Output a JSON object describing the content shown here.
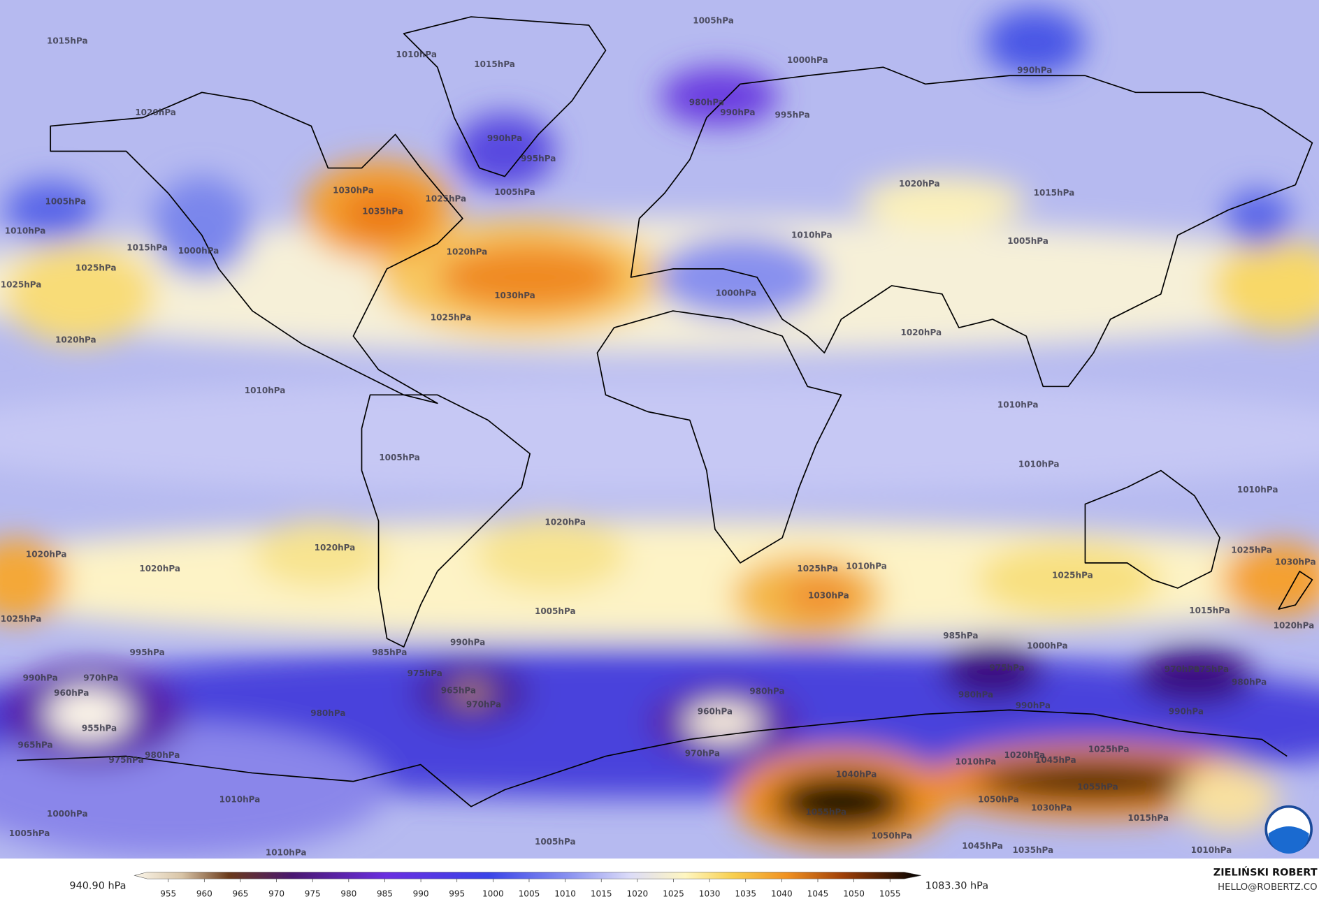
{
  "colorbar": {
    "min_label": "940.90 hPa",
    "max_label": "1083.30 hPa",
    "ticks": [
      955,
      960,
      965,
      970,
      975,
      980,
      985,
      990,
      995,
      1000,
      1005,
      1010,
      1015,
      1020,
      1025,
      1030,
      1035,
      1040,
      1045,
      1050,
      1055
    ]
  },
  "credit": {
    "name": "ZIELIŃSKI ROBERT",
    "email": "HELLO@ROBERTZ.CO"
  },
  "contour_labels": [
    "1015hPa",
    "1005hPa",
    "1000hPa",
    "990hPa",
    "1020hPa",
    "980hPa",
    "990hPa",
    "995hPa",
    "1010hPa",
    "1015hPa",
    "990hPa",
    "995hPa",
    "1030hPa",
    "1035hPa",
    "1005hPa",
    "1025hPa",
    "1020hPa",
    "1030hPa",
    "1025hPa",
    "1005hPa",
    "1010hPa",
    "1015hPa",
    "1000hPa",
    "1025hPa",
    "1025hPa",
    "1020hPa",
    "1010hPa",
    "1020hPa",
    "1015hPa",
    "1010hPa",
    "1005hPa",
    "1000hPa",
    "1020hPa",
    "1010hPa",
    "1010hPa",
    "1010hPa",
    "1005hPa",
    "1020hPa",
    "1020hPa",
    "1020hPa",
    "1020hPa",
    "1025hPa",
    "1030hPa",
    "1010hPa",
    "1005hPa",
    "1025hPa",
    "1025hPa",
    "1030hPa",
    "1015hPa",
    "1020hPa",
    "1025hPa",
    "995hPa",
    "990hPa",
    "970hPa",
    "960hPa",
    "955hPa",
    "965hPa",
    "975hPa",
    "980hPa",
    "985hPa",
    "990hPa",
    "975hPa",
    "965hPa",
    "970hPa",
    "980hPa",
    "980hPa",
    "960hPa",
    "970hPa",
    "985hPa",
    "975hPa",
    "980hPa",
    "1000hPa",
    "970hPa",
    "975hPa",
    "980hPa",
    "990hPa",
    "990hPa",
    "1040hPa",
    "1055hPa",
    "1050hPa",
    "1045hPa",
    "1055hPa",
    "1050hPa",
    "1030hPa",
    "1015hPa",
    "1035hPa",
    "1045hPa",
    "1010hPa",
    "1020hPa",
    "1025hPa",
    "1010hPa",
    "1000hPa",
    "1005hPa",
    "1005hPa",
    "1010hPa",
    "1010hPa"
  ]
}
